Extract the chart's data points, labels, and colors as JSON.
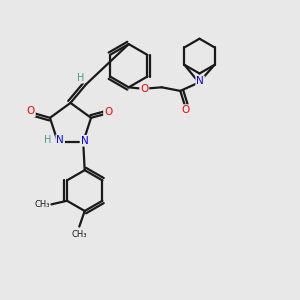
{
  "background_color": "#e8e8e8",
  "atom_colors": {
    "C": "#1a1a1a",
    "H": "#4a9a9a",
    "N": "#0000ff",
    "O": "#ff0000"
  },
  "bond_color": "#1a1a1a",
  "bond_width": 1.6,
  "xlim": [
    0,
    10
  ],
  "ylim": [
    0,
    10
  ]
}
